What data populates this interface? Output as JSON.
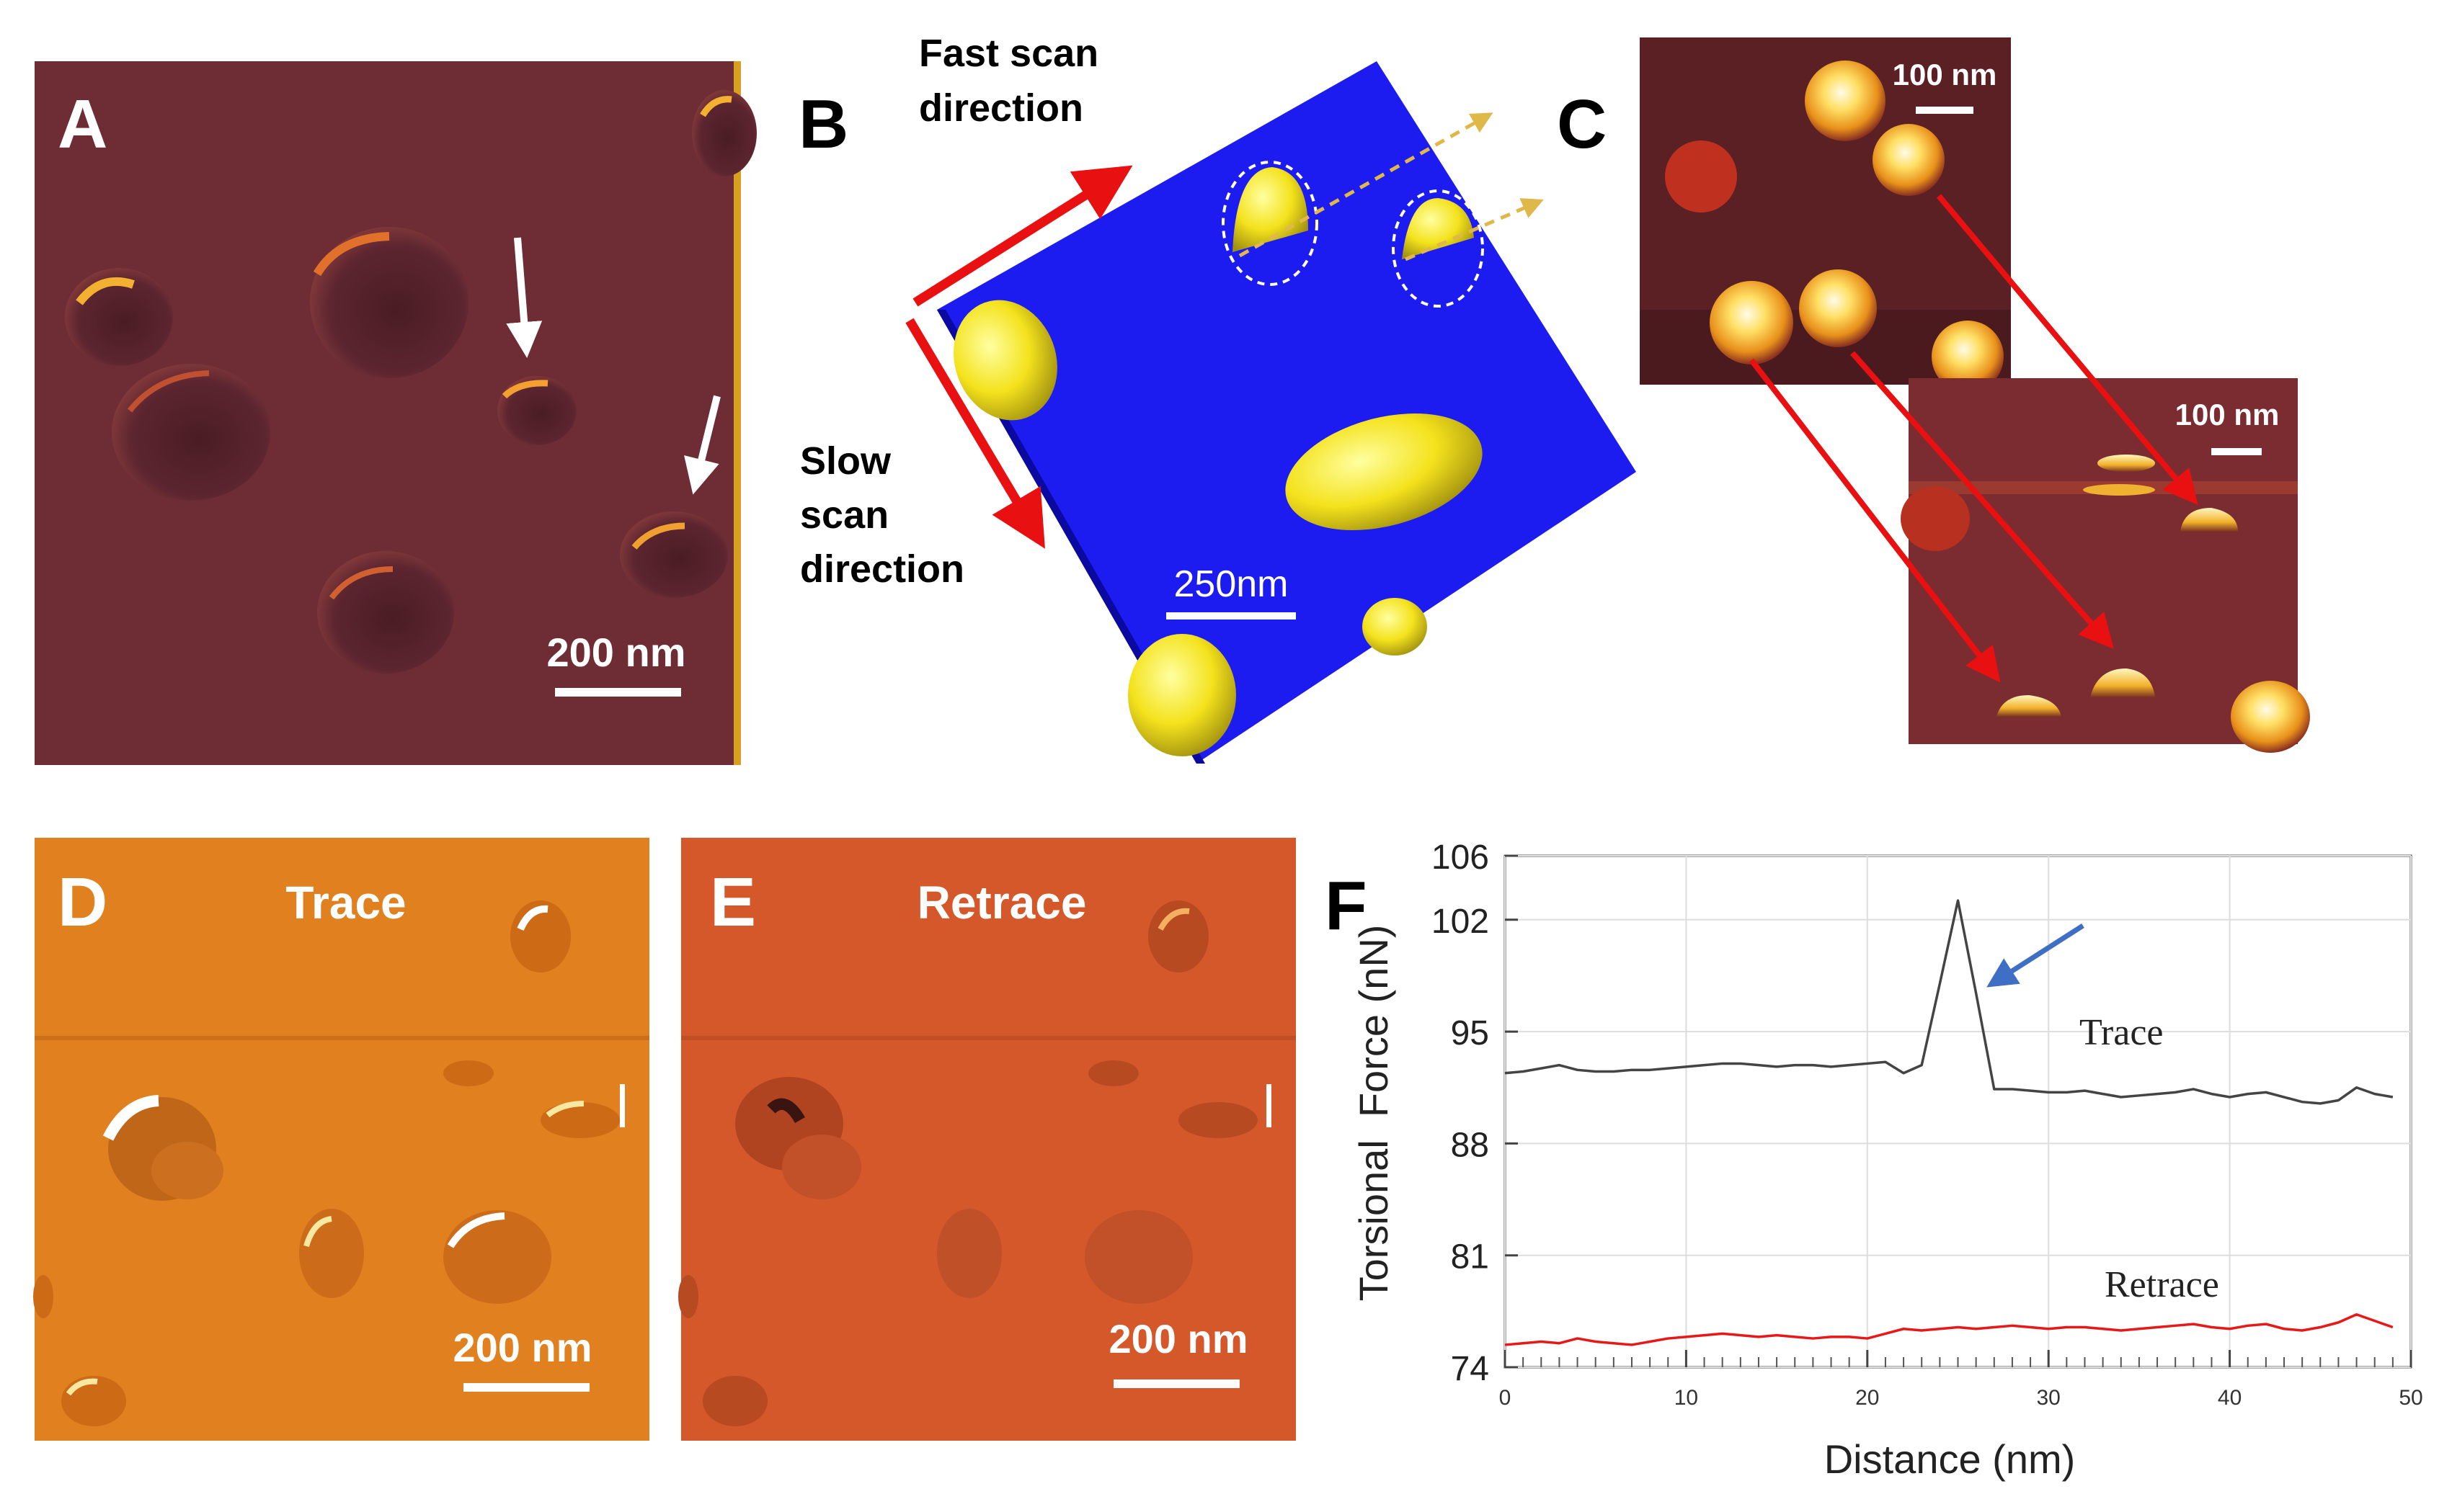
{
  "panels": {
    "a": {
      "letter": "A",
      "scale_bar": "200 nm"
    },
    "b": {
      "letter": "B",
      "fast_scan_line1": "Fast scan",
      "fast_scan_line2": "direction",
      "slow_scan_line1": "Slow",
      "slow_scan_line2": "scan",
      "slow_scan_line3": "direction",
      "scale_bar": "250nm"
    },
    "c": {
      "letter": "C",
      "scale_bar_top": "100 nm",
      "scale_bar_bottom": "100 nm"
    },
    "d": {
      "letter": "D",
      "title": "Trace",
      "scale_bar": "200 nm"
    },
    "e": {
      "letter": "E",
      "title": "Retrace",
      "scale_bar": "200 nm"
    },
    "f": {
      "letter": "F"
    }
  },
  "colors": {
    "afm_brown": "#6e2c35",
    "afm_orange_trace": "#e0801e",
    "afm_orange_retrace": "#d4582a",
    "afm_blue": "#1c1cf0",
    "arrow_red": "#e81010",
    "arrow_white": "#ffffff",
    "arrow_blue": "#3f6fc4",
    "trace_line": "#444444",
    "retrace_line": "#e81818"
  },
  "chart_data": {
    "type": "line",
    "title": "",
    "xlabel": "Distance (nm)",
    "ylabel": "Torsional  Force (nN)",
    "xlim": [
      0,
      50
    ],
    "ylim": [
      74,
      106
    ],
    "xticks": [
      0,
      10,
      20,
      30,
      40,
      50
    ],
    "yticks": [
      74,
      81,
      88,
      95,
      102,
      106
    ],
    "grid": true,
    "series": [
      {
        "name": "Trace",
        "x": [
          0,
          1,
          2,
          3,
          4,
          5,
          6,
          7,
          8,
          9,
          10,
          11,
          12,
          13,
          14,
          15,
          16,
          17,
          18,
          19,
          20,
          21,
          22,
          23,
          24,
          25,
          26,
          27,
          28,
          29,
          30,
          31,
          32,
          33,
          34,
          35,
          36,
          37,
          38,
          39,
          40,
          41,
          42,
          43,
          44,
          45,
          46,
          47,
          48,
          49
        ],
        "values": [
          92.4,
          92.5,
          92.7,
          92.9,
          92.6,
          92.5,
          92.5,
          92.6,
          92.6,
          92.7,
          92.8,
          92.9,
          93.0,
          93.0,
          92.9,
          92.8,
          92.9,
          92.9,
          92.8,
          92.9,
          93.0,
          93.1,
          92.4,
          92.9,
          98.0,
          103.2,
          97.4,
          91.4,
          91.4,
          91.3,
          91.2,
          91.2,
          91.3,
          91.1,
          90.9,
          91.0,
          91.1,
          91.2,
          91.4,
          91.1,
          90.9,
          91.1,
          91.2,
          90.9,
          90.6,
          90.5,
          90.7,
          91.5,
          91.1,
          90.9
        ],
        "annotation": "Trace"
      },
      {
        "name": "Retrace",
        "x": [
          0,
          1,
          2,
          3,
          4,
          5,
          6,
          7,
          8,
          9,
          10,
          11,
          12,
          13,
          14,
          15,
          16,
          17,
          18,
          19,
          20,
          21,
          22,
          23,
          24,
          25,
          26,
          27,
          28,
          29,
          30,
          31,
          32,
          33,
          34,
          35,
          36,
          37,
          38,
          39,
          40,
          41,
          42,
          43,
          44,
          45,
          46,
          47,
          48,
          49
        ],
        "values": [
          75.4,
          75.5,
          75.6,
          75.5,
          75.8,
          75.6,
          75.5,
          75.4,
          75.6,
          75.8,
          75.9,
          76.0,
          76.1,
          76.0,
          75.9,
          76.0,
          75.9,
          75.8,
          75.9,
          75.9,
          75.8,
          76.1,
          76.4,
          76.3,
          76.4,
          76.5,
          76.4,
          76.5,
          76.6,
          76.5,
          76.4,
          76.5,
          76.5,
          76.4,
          76.3,
          76.4,
          76.5,
          76.6,
          76.7,
          76.5,
          76.4,
          76.6,
          76.7,
          76.4,
          76.3,
          76.5,
          76.8,
          77.3,
          76.9,
          76.5
        ],
        "annotation": "Retrace"
      }
    ]
  }
}
